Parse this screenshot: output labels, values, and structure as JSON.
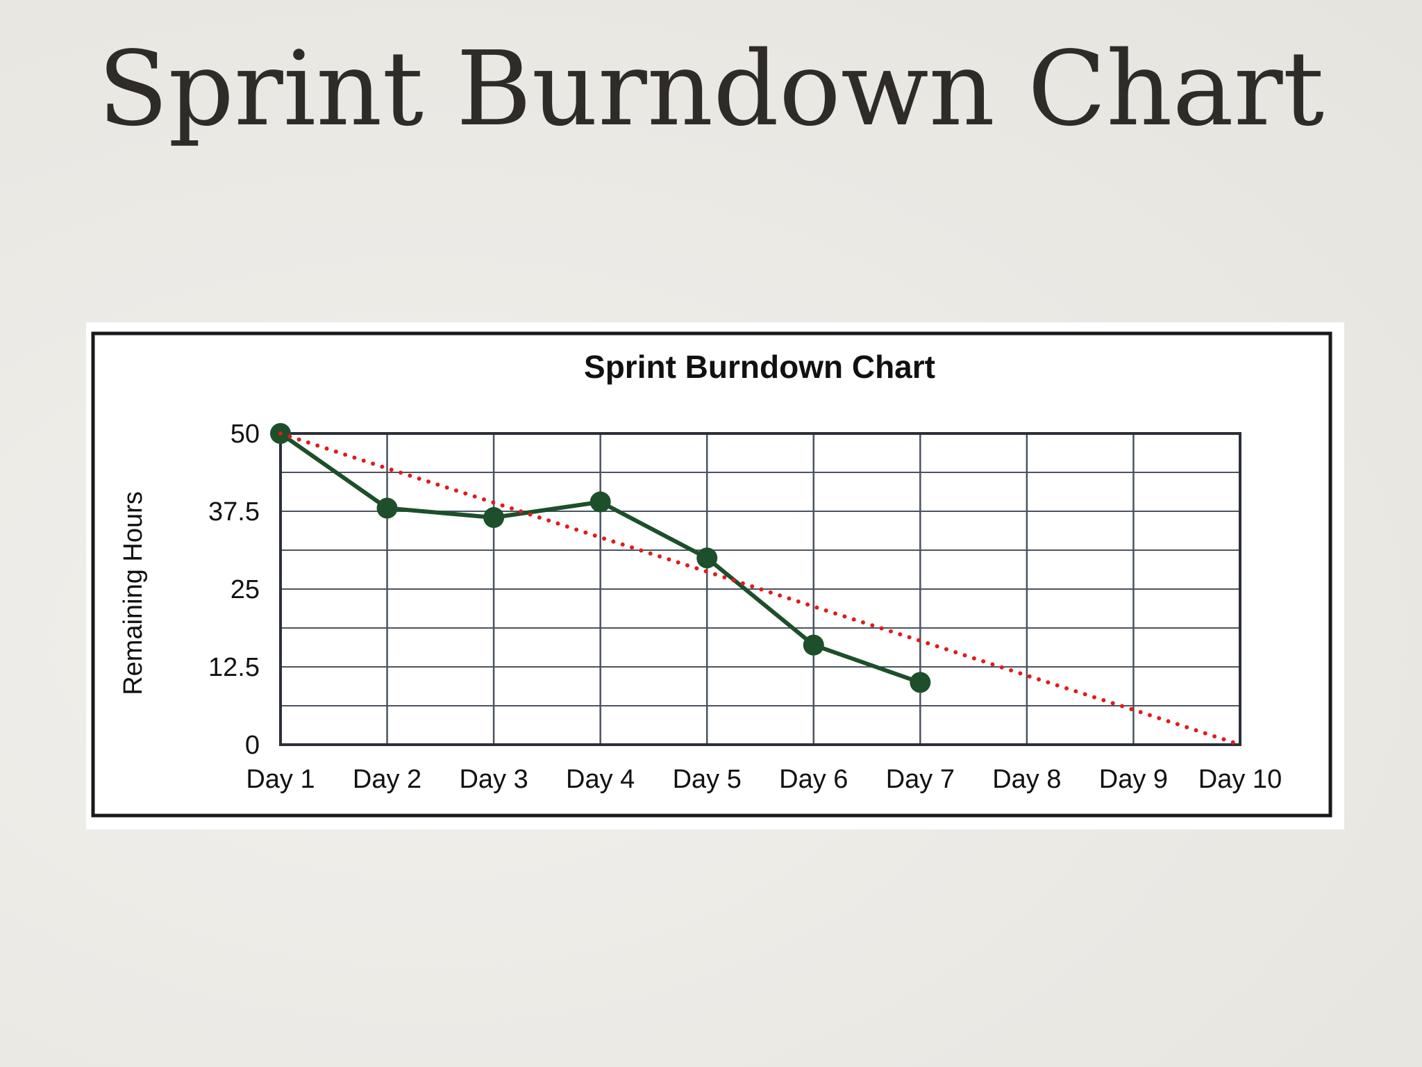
{
  "slide": {
    "title": "Sprint Burndown Chart"
  },
  "chart_data": {
    "type": "line",
    "title": "Sprint Burndown Chart",
    "xlabel": "",
    "ylabel": "Remaining Hours",
    "categories": [
      "Day 1",
      "Day 2",
      "Day 3",
      "Day 4",
      "Day 5",
      "Day 6",
      "Day 7",
      "Day 8",
      "Day 9",
      "Day 10"
    ],
    "yticks": [
      0,
      12.5,
      25,
      37.5,
      50
    ],
    "ytick_labels": [
      "0",
      "12.5",
      "25",
      "37.5",
      "50"
    ],
    "ylim": [
      0,
      50
    ],
    "grid": true,
    "minor_gridlines_per_major": 2,
    "legend": "none",
    "series": [
      {
        "values": [
          50,
          38,
          36.5,
          39,
          30,
          16,
          10,
          null,
          null,
          null
        ],
        "style": "solid",
        "marker": "circle",
        "color": "#1c4f2a"
      },
      {
        "values": [
          50,
          44.4,
          38.9,
          33.3,
          27.8,
          22.2,
          16.7,
          11.1,
          5.6,
          0
        ],
        "style": "dotted",
        "marker": "none",
        "color": "#e11b1b"
      }
    ]
  }
}
